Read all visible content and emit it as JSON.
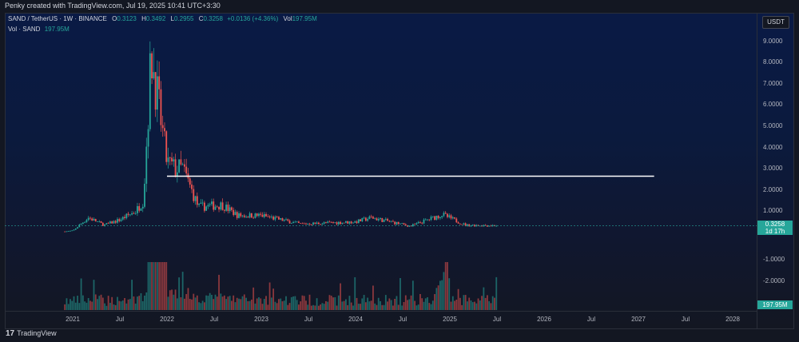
{
  "header": {
    "text": "Penky created with TradingView.com, Jul 19, 2025 10:41 UTC+3:30"
  },
  "legend": {
    "symbol": "SAND / TetherUS · 1W · BINANCE",
    "o_label": "O",
    "o_value": "0.3123",
    "h_label": "H",
    "h_value": "0.3492",
    "l_label": "L",
    "l_value": "0.2955",
    "c_label": "C",
    "c_value": "0.3258",
    "change": "+0.0136 (+4.36%)",
    "vol_label": "Vol",
    "vol_value": "197.95M"
  },
  "volume_legend": {
    "label": "Vol · SAND",
    "value": "197.95M"
  },
  "currency_button": "USDT",
  "price_axis": [
    "9.0000",
    "8.0000",
    "7.0000",
    "6.0000",
    "5.0000",
    "4.0000",
    "3.0000",
    "2.0000",
    "1.0000",
    "-1.0000",
    "-2.0000"
  ],
  "current_price": {
    "value": "0.3258",
    "countdown": "1d 17h"
  },
  "volume_tag": "197.95M",
  "time_axis": [
    "2021",
    "Jul",
    "2022",
    "Jul",
    "2023",
    "Jul",
    "2024",
    "Jul",
    "2025",
    "Jul",
    "2026",
    "Jul",
    "2027",
    "Jul",
    "2028"
  ],
  "brand": {
    "logo": "17",
    "name": "TradingView"
  },
  "colors": {
    "up": "#26a69a",
    "down": "#ef5350",
    "background_top": "#0a1a45",
    "background_bottom": "#131722",
    "horizontal_line": "#ffffff"
  },
  "chart_data": {
    "type": "candlestick",
    "interval": "1W",
    "y_range": [
      -2.5,
      9.5
    ],
    "horizontal_line_level": 2.65,
    "price_path": [
      [
        "2020-12",
        0.05
      ],
      [
        "2021-01",
        0.08
      ],
      [
        "2021-03",
        0.7
      ],
      [
        "2021-05",
        0.35
      ],
      [
        "2021-07",
        0.6
      ],
      [
        "2021-09",
        1.0
      ],
      [
        "2021-10",
        1.5
      ],
      [
        "2021-11",
        8.4
      ],
      [
        "2021-12",
        5.8
      ],
      [
        "2022-01",
        3.3
      ],
      [
        "2022-02",
        3.0
      ],
      [
        "2022-03",
        3.0
      ],
      [
        "2022-05",
        1.2
      ],
      [
        "2022-08",
        1.3
      ],
      [
        "2022-10",
        0.8
      ],
      [
        "2023-01",
        0.8
      ],
      [
        "2023-06",
        0.4
      ],
      [
        "2024-01",
        0.5
      ],
      [
        "2024-03",
        0.7
      ],
      [
        "2024-08",
        0.3
      ],
      [
        "2024-12",
        0.85
      ],
      [
        "2025-03",
        0.35
      ],
      [
        "2025-07",
        0.3258
      ]
    ]
  }
}
